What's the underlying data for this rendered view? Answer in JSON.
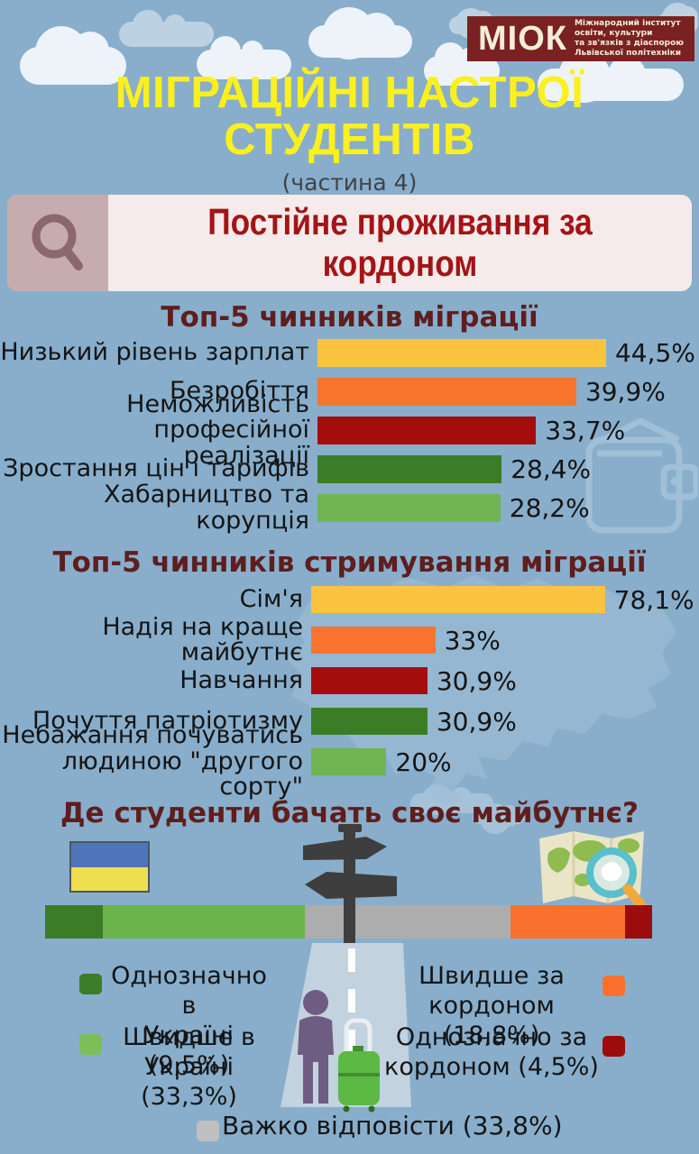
{
  "colors": {
    "background": "#88AECB",
    "section_title": "#5E1E1E",
    "main_title_yellow": "#FBF01E",
    "logo_red": "#7A2121",
    "search_text_red": "#A31417"
  },
  "logo": {
    "abbr": "МІОК",
    "org_lines": [
      "Міжнародний інститут",
      "освіти, культури",
      "та зв'язків з діаспорою",
      "Львівської політехніки"
    ]
  },
  "header": {
    "title_line1": "МІГРАЦІЙНІ НАСТРОЇ",
    "title_line2": "СТУДЕНТІВ",
    "subtitle": "(частина 4)"
  },
  "search": {
    "query_line1": "Постійне проживання за",
    "query_line2": "кордоном"
  },
  "chart_data": [
    {
      "type": "bar",
      "orientation": "horizontal",
      "title": "Топ-5 чинників міграції",
      "categories": [
        [
          "Низький рівень зарплат"
        ],
        [
          "Безробіття"
        ],
        [
          "Неможливість професійної",
          "реалізації"
        ],
        [
          "Зростання цін і тарифів"
        ],
        [
          "Хабарництво та корупція"
        ]
      ],
      "values": [
        44.5,
        39.9,
        33.7,
        28.4,
        28.2
      ],
      "value_labels": [
        "44,5%",
        "39,9%",
        "33,7%",
        "28,4%",
        "28,2%"
      ],
      "colors": [
        "#FAC43E",
        "#F8742E",
        "#A50D0D",
        "#3A7D26",
        "#6FB551"
      ],
      "xlim": [
        0,
        46
      ],
      "grid": false,
      "legend": "none"
    },
    {
      "type": "bar",
      "orientation": "horizontal",
      "title": "Топ-5 чинників стримування міграції",
      "categories": [
        [
          "Сім'я"
        ],
        [
          "Надія на краще майбутнє"
        ],
        [
          "Навчання"
        ],
        [
          "Почуття патріотизму"
        ],
        [
          "Небажання почуватись",
          "людиною \"другого сорту\""
        ]
      ],
      "values": [
        78.1,
        33,
        30.9,
        30.9,
        20
      ],
      "value_labels": [
        "78,1%",
        "33%",
        "30,9%",
        "30,9%",
        "20%"
      ],
      "colors": [
        "#FAC43E",
        "#F8742E",
        "#A50D0D",
        "#3A7D26",
        "#6FB551"
      ],
      "xlim": [
        0,
        80
      ],
      "grid": false,
      "legend": "none"
    },
    {
      "type": "stacked-bar",
      "title": "Де студенти бачать своє майбутнє?",
      "total": 99.9,
      "segments": [
        {
          "label": "Однозначно в Україні",
          "pct": 9.5,
          "color": "#3A7D26"
        },
        {
          "label": "Швидше в Україні",
          "pct": 33.3,
          "color": "#6BB44B"
        },
        {
          "label": "Важко відповісти",
          "pct": 33.8,
          "color": "#ADADAD"
        },
        {
          "label": "Швидше за кордоном",
          "pct": 18.8,
          "color": "#F8712F"
        },
        {
          "label": "Однозначно за кордоном",
          "pct": 4.5,
          "color": "#9C0C0C"
        }
      ]
    }
  ],
  "future": {
    "title": "Де студенти бачать своє майбутнє?",
    "legend": [
      {
        "lines": [
          "Однозначно в",
          "Україні (9,5%)"
        ],
        "color": "#3A7D26"
      },
      {
        "lines": [
          "Швидше в",
          "Україні (33,3%)"
        ],
        "color": "#7CBE58"
      },
      {
        "lines": [
          "Швидше за",
          "кордоном (18,8%)"
        ],
        "color": "#F8712F"
      },
      {
        "lines": [
          "Однозначно за",
          "кордоном (4,5%)"
        ],
        "color": "#9C0C0C"
      },
      {
        "lines": [
          "Важко відповісти (33,8%)"
        ],
        "color": "#C0BFBF"
      }
    ]
  }
}
